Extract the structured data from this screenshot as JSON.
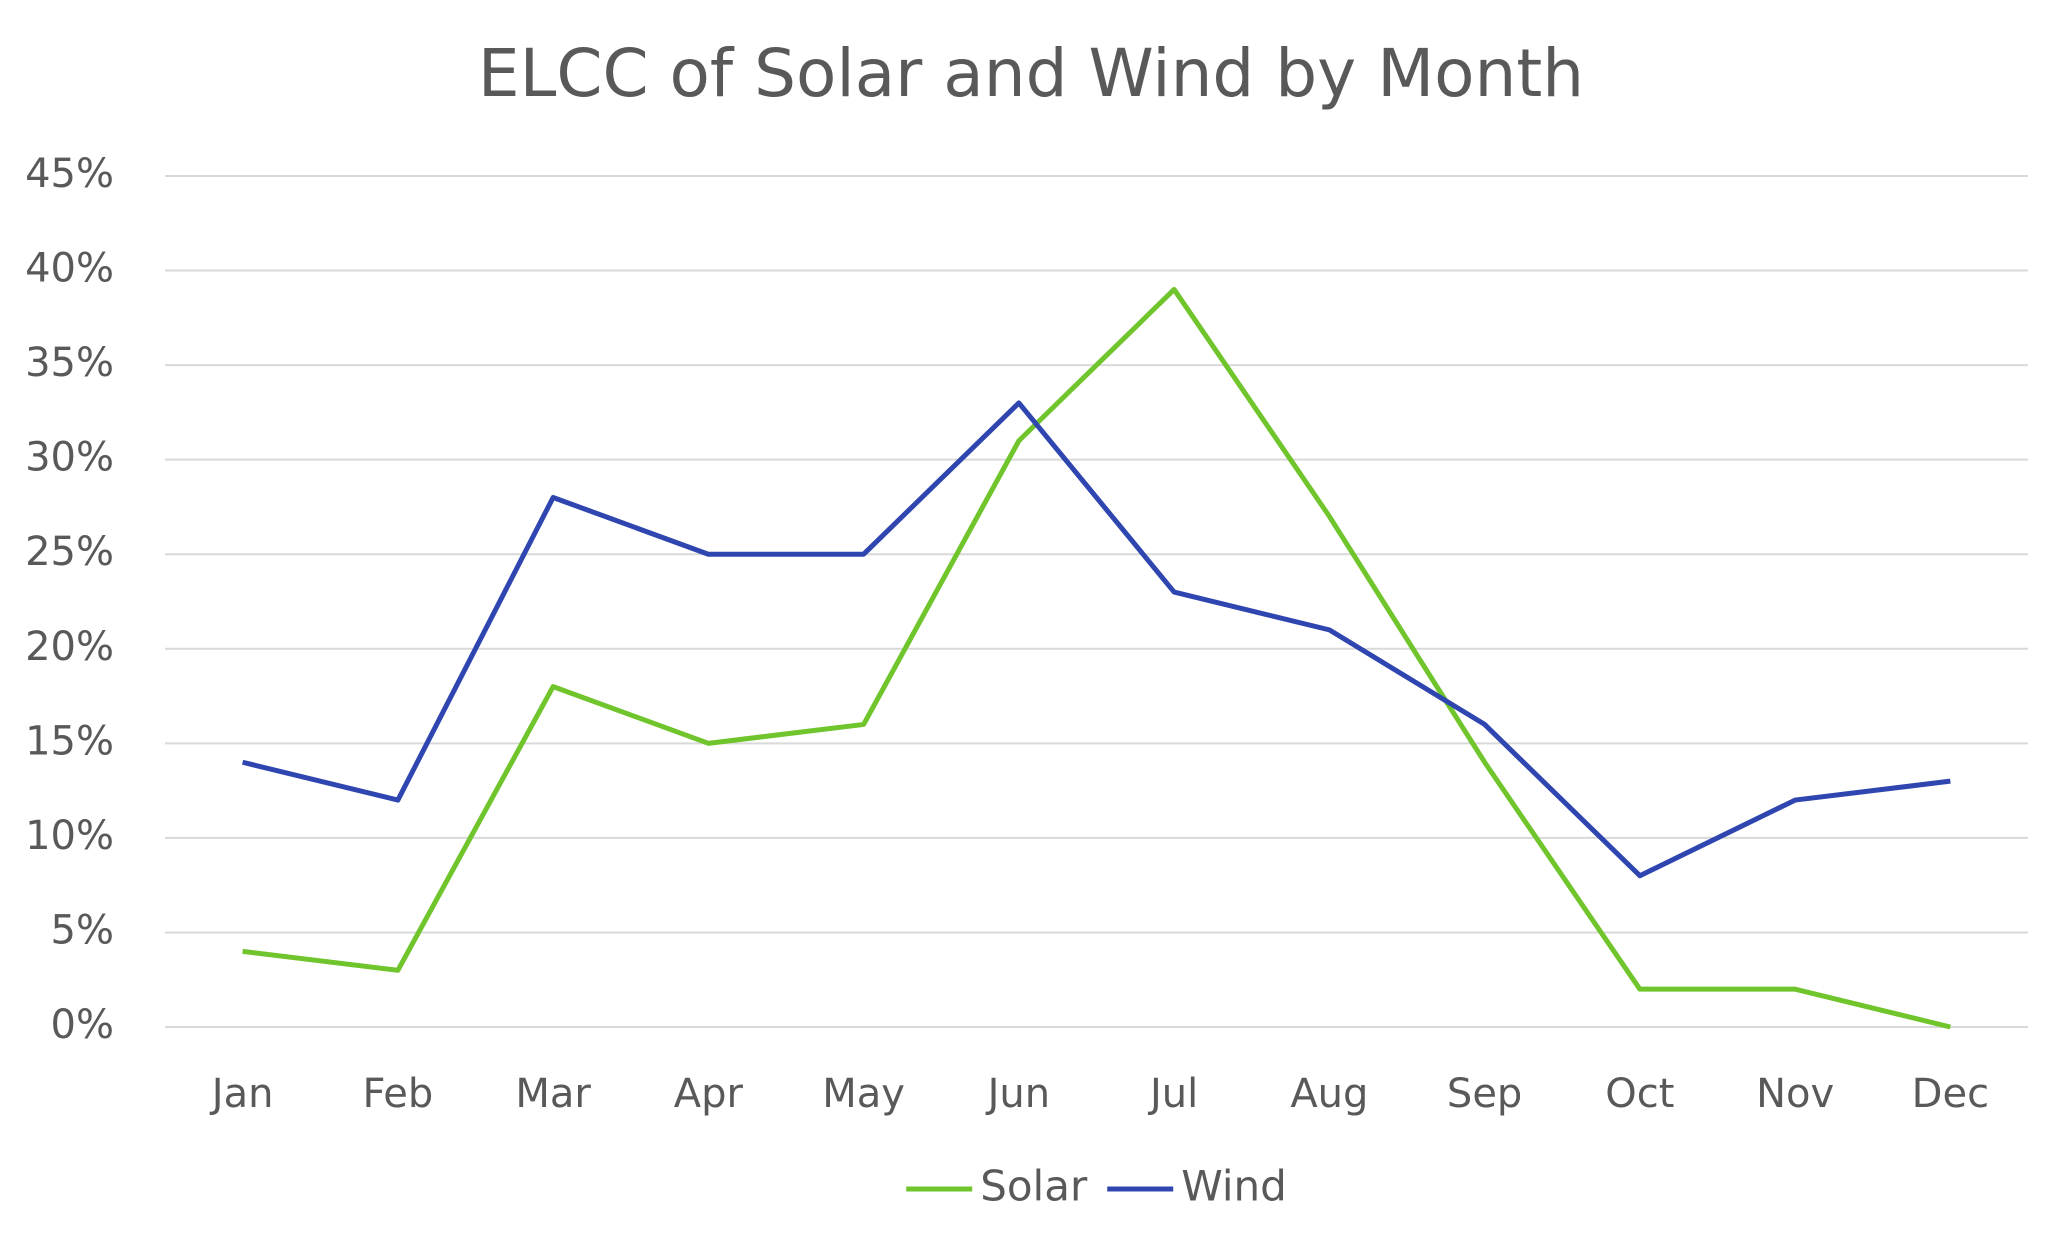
{
  "chart_data": {
    "type": "line",
    "title": "ELCC of Solar and Wind by Month",
    "categories": [
      "Jan",
      "Feb",
      "Mar",
      "Apr",
      "May",
      "Jun",
      "Jul",
      "Aug",
      "Sep",
      "Oct",
      "Nov",
      "Dec"
    ],
    "series": [
      {
        "name": "Solar",
        "color": "#70c52c",
        "values": [
          4,
          3,
          18,
          15,
          16,
          31,
          39,
          27,
          14,
          2,
          2,
          0
        ]
      },
      {
        "name": "Wind",
        "color": "#2f45b0",
        "values": [
          14,
          12,
          28,
          25,
          25,
          33,
          23,
          21,
          16,
          8,
          12,
          13
        ]
      }
    ],
    "ylim": [
      0,
      45
    ],
    "yticks": [
      {
        "value": 0,
        "label": "0%"
      },
      {
        "value": 5,
        "label": "5%"
      },
      {
        "value": 10,
        "label": "10%"
      },
      {
        "value": 15,
        "label": "15%"
      },
      {
        "value": 20,
        "label": "20%"
      },
      {
        "value": 25,
        "label": "25%"
      },
      {
        "value": 30,
        "label": "30%"
      },
      {
        "value": 35,
        "label": "35%"
      },
      {
        "value": 40,
        "label": "40%"
      },
      {
        "value": 45,
        "label": "45%"
      }
    ],
    "grid": true,
    "legend": "bottom"
  }
}
